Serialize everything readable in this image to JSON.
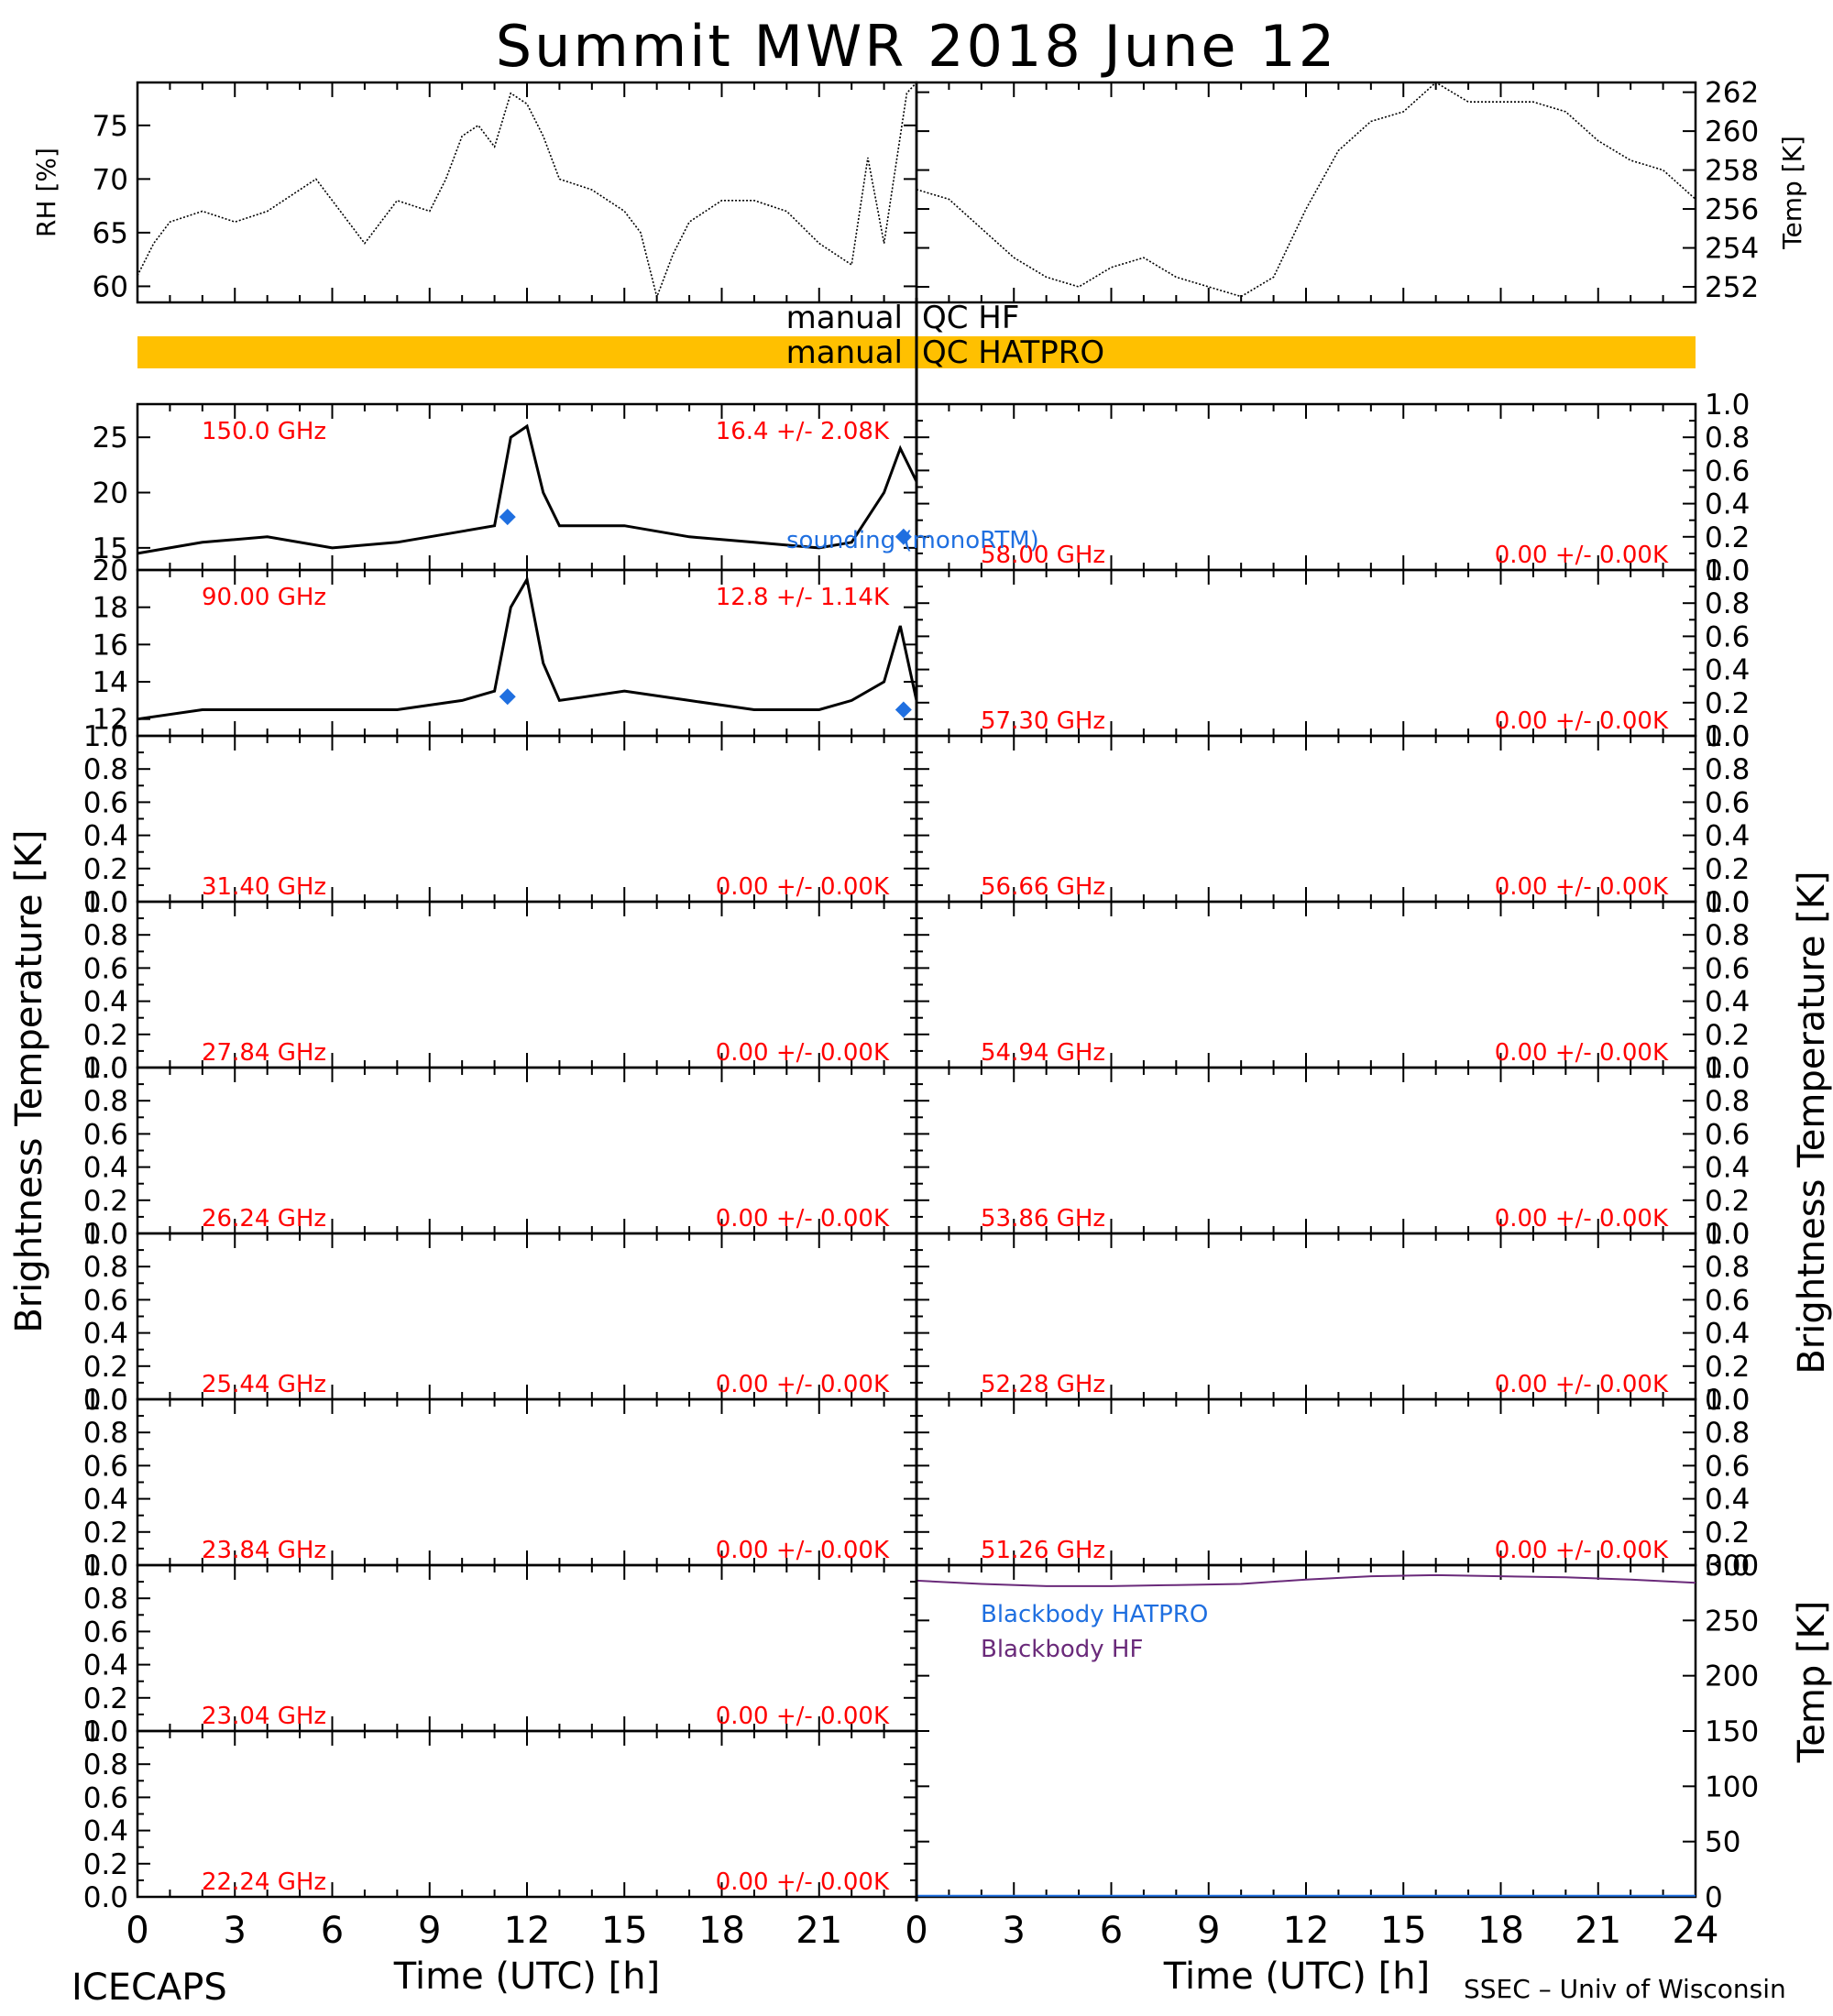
{
  "title": "Summit MWR 2018 June 12",
  "footer": {
    "left": "ICECAPS",
    "right": "SSEC – Univ of Wisconsin"
  },
  "colors": {
    "bar": "#ffc000",
    "red": "#ff0000",
    "blue": "#1f6fe0",
    "purple": "#6a2a7a",
    "trace": "#000000"
  },
  "qc": {
    "left_word": "manual",
    "hf": "QC HF",
    "hatpro": "QC HATPRO"
  },
  "xaxis": {
    "label": "Time (UTC) [h]",
    "ticks": [
      "0",
      "3",
      "6",
      "9",
      "12",
      "15",
      "18",
      "21"
    ],
    "ticks_right": [
      "0",
      "3",
      "6",
      "9",
      "12",
      "15",
      "18",
      "21",
      "24"
    ]
  },
  "ylabels": {
    "rh": "RH [%]",
    "temp": "Temp [K]",
    "tb_left": "Brightness Temperature [K]",
    "tb_right": "Brightness Temperature [K]",
    "bb_temp": "Temp [K]"
  },
  "legend": {
    "sounding": "sounding (monoRTM)",
    "bb_hatpro": "Blackbody HATPRO",
    "bb_hf": "Blackbody HF"
  },
  "chart_data": [
    {
      "type": "line",
      "panel": "rh",
      "xlabel": "",
      "ylabel": "RH [%]",
      "xlim": [
        0,
        24
      ],
      "ylim": [
        58.5,
        79
      ],
      "yticks": [
        60,
        65,
        70,
        75
      ],
      "series": [
        {
          "x": [
            0,
            0.5,
            1,
            2,
            3,
            4,
            5,
            5.5,
            6,
            7,
            7.5,
            8,
            9,
            9.5,
            10,
            10.5,
            11,
            11.5,
            12,
            12.5,
            13,
            14,
            15,
            15.5,
            16,
            16.5,
            17,
            18,
            19,
            20,
            21,
            22,
            22.5,
            23,
            23.3,
            23.7,
            24
          ],
          "y": [
            61,
            64,
            66,
            67,
            66,
            67,
            69,
            70,
            68,
            64,
            66,
            68,
            67,
            70,
            74,
            75,
            73,
            78,
            77,
            74,
            70,
            69,
            67,
            65,
            59,
            63,
            66,
            68,
            68,
            67,
            64,
            62,
            72,
            64,
            70,
            78,
            79
          ]
        }
      ]
    },
    {
      "type": "line",
      "panel": "temp",
      "xlabel": "",
      "ylabel": "Temp [K]",
      "xlim": [
        0,
        24
      ],
      "ylim": [
        251.2,
        262.5
      ],
      "yticks": [
        252,
        254,
        256,
        258,
        260,
        262
      ],
      "series": [
        {
          "x": [
            0,
            1,
            2,
            3,
            4,
            5,
            6,
            7,
            8,
            9,
            10,
            11,
            12,
            13,
            14,
            15,
            16,
            17,
            18,
            19,
            20,
            21,
            22,
            23,
            24
          ],
          "y": [
            257,
            256.5,
            255,
            253.5,
            252.5,
            252,
            253,
            253.5,
            252.5,
            252,
            251.5,
            252.5,
            256,
            259,
            260.5,
            261,
            262.5,
            261.5,
            261.5,
            261.5,
            261,
            259.5,
            258.5,
            258,
            256.5
          ]
        }
      ]
    },
    {
      "type": "line",
      "panel": "tb",
      "label": "150.0 GHz",
      "stats": "16.4 +/-  2.08K",
      "xlim": [
        0,
        24
      ],
      "ylim": [
        13,
        28
      ],
      "yticks": [
        15,
        20,
        25
      ],
      "series": [
        {
          "x": [
            0,
            2,
            4,
            6,
            8,
            10,
            11,
            11.5,
            12,
            12.5,
            13,
            15,
            17,
            19,
            21,
            22,
            23,
            23.5,
            24
          ],
          "y": [
            14.5,
            15.5,
            16,
            15,
            15.5,
            16.5,
            17,
            25,
            26,
            20,
            17,
            17,
            16,
            15.5,
            15,
            15.5,
            20,
            24,
            21
          ]
        },
        {
          "name": "sounding (monoRTM)",
          "x": [
            11.4,
            23.6
          ],
          "y": [
            17.8,
            16.0
          ]
        }
      ]
    },
    {
      "type": "line",
      "panel": "tb",
      "label": "90.00 GHz",
      "stats": "12.8 +/-  1.14K",
      "xlim": [
        0,
        24
      ],
      "ylim": [
        11.1,
        20
      ],
      "yticks": [
        12,
        14,
        16,
        18,
        20
      ],
      "series": [
        {
          "x": [
            0,
            2,
            4,
            6,
            8,
            10,
            11,
            11.5,
            12,
            12.5,
            13,
            15,
            17,
            19,
            21,
            22,
            23,
            23.5,
            24
          ],
          "y": [
            12,
            12.5,
            12.5,
            12.5,
            12.5,
            13,
            13.5,
            18,
            19.5,
            15,
            13,
            13.5,
            13,
            12.5,
            12.5,
            13,
            14,
            17,
            13
          ]
        },
        {
          "name": "sounding (monoRTM)",
          "x": [
            11.4,
            23.6
          ],
          "y": [
            13.2,
            12.5
          ]
        }
      ]
    },
    {
      "type": "line",
      "panel": "tb",
      "label": "31.40 GHz",
      "stats": "0.00 +/-  0.00K",
      "ylim": [
        0,
        1
      ],
      "series": []
    },
    {
      "type": "line",
      "panel": "tb",
      "label": "27.84 GHz",
      "stats": "0.00 +/-  0.00K",
      "ylim": [
        0,
        1
      ],
      "series": []
    },
    {
      "type": "line",
      "panel": "tb",
      "label": "26.24 GHz",
      "stats": "0.00 +/-  0.00K",
      "ylim": [
        0,
        1
      ],
      "series": []
    },
    {
      "type": "line",
      "panel": "tb",
      "label": "25.44 GHz",
      "stats": "0.00 +/-  0.00K",
      "ylim": [
        0,
        1
      ],
      "series": []
    },
    {
      "type": "line",
      "panel": "tb",
      "label": "23.84 GHz",
      "stats": "0.00 +/-  0.00K",
      "ylim": [
        0,
        1
      ],
      "series": []
    },
    {
      "type": "line",
      "panel": "tb",
      "label": "23.04 GHz",
      "stats": "0.00 +/-  0.00K",
      "ylim": [
        0,
        1
      ],
      "series": []
    },
    {
      "type": "line",
      "panel": "tb",
      "label": "22.24 GHz",
      "stats": "0.00 +/-  0.00K",
      "ylim": [
        0,
        1
      ],
      "series": []
    },
    {
      "type": "line",
      "panel": "tb",
      "label": "58.00 GHz",
      "stats": "0.00 +/-  0.00K",
      "ylim": [
        0,
        1
      ],
      "series": []
    },
    {
      "type": "line",
      "panel": "tb",
      "label": "57.30 GHz",
      "stats": "0.00 +/-  0.00K",
      "ylim": [
        0,
        1
      ],
      "series": []
    },
    {
      "type": "line",
      "panel": "tb",
      "label": "56.66 GHz",
      "stats": "0.00 +/-  0.00K",
      "ylim": [
        0,
        1
      ],
      "series": []
    },
    {
      "type": "line",
      "panel": "tb",
      "label": "54.94 GHz",
      "stats": "0.00 +/-  0.00K",
      "ylim": [
        0,
        1
      ],
      "series": []
    },
    {
      "type": "line",
      "panel": "tb",
      "label": "53.86 GHz",
      "stats": "0.00 +/-  0.00K",
      "ylim": [
        0,
        1
      ],
      "series": []
    },
    {
      "type": "line",
      "panel": "tb",
      "label": "52.28 GHz",
      "stats": "0.00 +/-  0.00K",
      "ylim": [
        0,
        1
      ],
      "series": []
    },
    {
      "type": "line",
      "panel": "tb",
      "label": "51.26 GHz",
      "stats": "0.00 +/-  0.00K",
      "ylim": [
        0,
        1
      ],
      "series": []
    },
    {
      "type": "line",
      "panel": "blackbody",
      "ylabel": "Temp [K]",
      "xlim": [
        0,
        24
      ],
      "ylim": [
        0,
        300
      ],
      "yticks": [
        0,
        50,
        100,
        150,
        200,
        250,
        300
      ],
      "series": [
        {
          "name": "Blackbody HF",
          "x": [
            0,
            2,
            4,
            6,
            8,
            10,
            12,
            14,
            16,
            18,
            20,
            22,
            24
          ],
          "y": [
            286,
            283,
            281,
            281,
            282,
            283,
            287,
            290,
            291,
            290,
            289,
            287,
            284
          ]
        },
        {
          "name": "Blackbody HATPRO",
          "x": [
            0,
            24
          ],
          "y": [
            1,
            1
          ]
        }
      ]
    }
  ]
}
